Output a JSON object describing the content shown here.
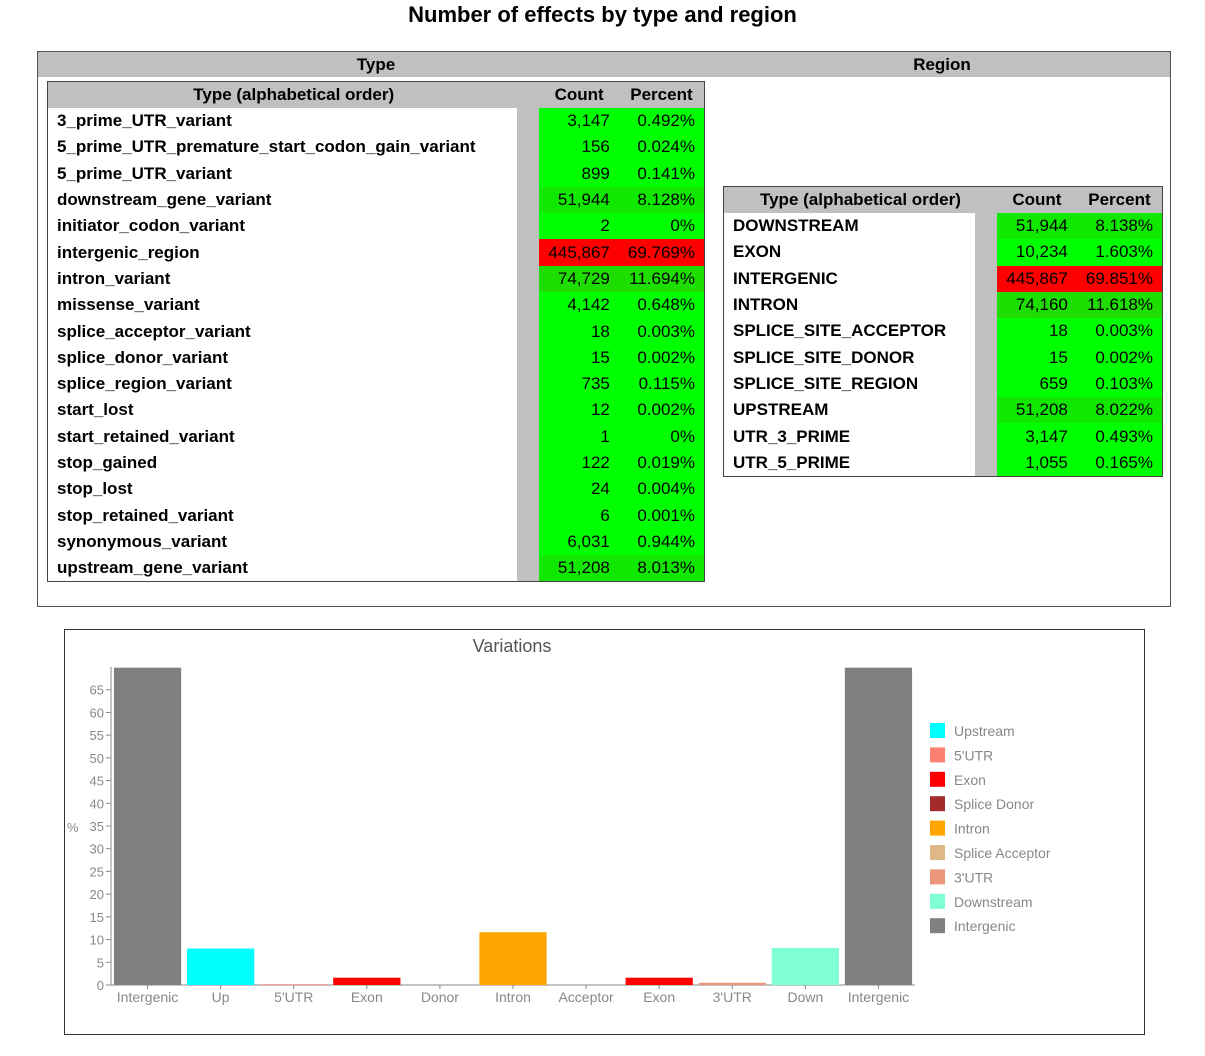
{
  "page": {
    "title": "Number of effects by type and region"
  },
  "type_section": {
    "header": "Type",
    "columns": [
      "Type (alphabetical order)",
      "Count",
      "Percent"
    ],
    "rows": [
      {
        "name": "3_prime_UTR_variant",
        "count": "3,147",
        "percent": "0.492%",
        "color": "#00ff00"
      },
      {
        "name": "5_prime_UTR_premature_start_codon_gain_variant",
        "count": "156",
        "percent": "0.024%",
        "color": "#00ff00"
      },
      {
        "name": "5_prime_UTR_variant",
        "count": "899",
        "percent": "0.141%",
        "color": "#00ff00"
      },
      {
        "name": "downstream_gene_variant",
        "count": "51,944",
        "percent": "8.128%",
        "color": "#11e800"
      },
      {
        "name": "initiator_codon_variant",
        "count": "2",
        "percent": "0%",
        "color": "#00ff00"
      },
      {
        "name": "intergenic_region",
        "count": "445,867",
        "percent": "69.769%",
        "color": "#ff0000"
      },
      {
        "name": "intron_variant",
        "count": "74,729",
        "percent": "11.694%",
        "color": "#1edd00"
      },
      {
        "name": "missense_variant",
        "count": "4,142",
        "percent": "0.648%",
        "color": "#00ff00"
      },
      {
        "name": "splice_acceptor_variant",
        "count": "18",
        "percent": "0.003%",
        "color": "#00ff00"
      },
      {
        "name": "splice_donor_variant",
        "count": "15",
        "percent": "0.002%",
        "color": "#00ff00"
      },
      {
        "name": "splice_region_variant",
        "count": "735",
        "percent": "0.115%",
        "color": "#00ff00"
      },
      {
        "name": "start_lost",
        "count": "12",
        "percent": "0.002%",
        "color": "#00ff00"
      },
      {
        "name": "start_retained_variant",
        "count": "1",
        "percent": "0%",
        "color": "#00ff00"
      },
      {
        "name": "stop_gained",
        "count": "122",
        "percent": "0.019%",
        "color": "#00ff00"
      },
      {
        "name": "stop_lost",
        "count": "24",
        "percent": "0.004%",
        "color": "#00ff00"
      },
      {
        "name": "stop_retained_variant",
        "count": "6",
        "percent": "0.001%",
        "color": "#00ff00"
      },
      {
        "name": "synonymous_variant",
        "count": "6,031",
        "percent": "0.944%",
        "color": "#00ff00"
      },
      {
        "name": "upstream_gene_variant",
        "count": "51,208",
        "percent": "8.013%",
        "color": "#11e800"
      }
    ]
  },
  "region_section": {
    "header": "Region",
    "columns": [
      "Type (alphabetical order)",
      "Count",
      "Percent"
    ],
    "rows": [
      {
        "name": "DOWNSTREAM",
        "count": "51,944",
        "percent": "8.138%",
        "color": "#11e800"
      },
      {
        "name": "EXON",
        "count": "10,234",
        "percent": "1.603%",
        "color": "#00ff00"
      },
      {
        "name": "INTERGENIC",
        "count": "445,867",
        "percent": "69.851%",
        "color": "#ff0000"
      },
      {
        "name": "INTRON",
        "count": "74,160",
        "percent": "11.618%",
        "color": "#1edd00"
      },
      {
        "name": "SPLICE_SITE_ACCEPTOR",
        "count": "18",
        "percent": "0.003%",
        "color": "#00ff00"
      },
      {
        "name": "SPLICE_SITE_DONOR",
        "count": "15",
        "percent": "0.002%",
        "color": "#00ff00"
      },
      {
        "name": "SPLICE_SITE_REGION",
        "count": "659",
        "percent": "0.103%",
        "color": "#00ff00"
      },
      {
        "name": "UPSTREAM",
        "count": "51,208",
        "percent": "8.022%",
        "color": "#11e800"
      },
      {
        "name": "UTR_3_PRIME",
        "count": "3,147",
        "percent": "0.493%",
        "color": "#00ff00"
      },
      {
        "name": "UTR_5_PRIME",
        "count": "1,055",
        "percent": "0.165%",
        "color": "#00ff00"
      }
    ]
  },
  "chart_data": {
    "type": "bar",
    "title": "Variations",
    "ylabel": "%",
    "xlabel": "",
    "ylim": [
      0,
      70
    ],
    "yticks": [
      0,
      5,
      10,
      15,
      20,
      25,
      30,
      35,
      40,
      45,
      50,
      55,
      60,
      65
    ],
    "categories": [
      "Intergenic",
      "Up",
      "5'UTR",
      "Exon",
      "Donor",
      "Intron",
      "Acceptor",
      "Exon",
      "3'UTR",
      "Down",
      "Intergenic"
    ],
    "values": [
      69.851,
      8.022,
      0.165,
      1.603,
      0.002,
      11.618,
      0.003,
      1.603,
      0.493,
      8.138,
      69.851
    ],
    "colors": [
      "#808080",
      "#00ffff",
      "#fa8072",
      "#ff0000",
      "#a52a2a",
      "#ffa500",
      "#deb887",
      "#ff0000",
      "#e9967a",
      "#7fffd4",
      "#808080"
    ],
    "legend_position": "right",
    "legend": [
      {
        "label": "Upstream",
        "color": "#00ffff"
      },
      {
        "label": "5'UTR",
        "color": "#fa8072"
      },
      {
        "label": "Exon",
        "color": "#ff0000"
      },
      {
        "label": "Splice Donor",
        "color": "#a52a2a"
      },
      {
        "label": "Intron",
        "color": "#ffa500"
      },
      {
        "label": "Splice Acceptor",
        "color": "#deb887"
      },
      {
        "label": "3'UTR",
        "color": "#e9967a"
      },
      {
        "label": "Downstream",
        "color": "#7fffd4"
      },
      {
        "label": "Intergenic",
        "color": "#808080"
      }
    ],
    "grid": false
  }
}
